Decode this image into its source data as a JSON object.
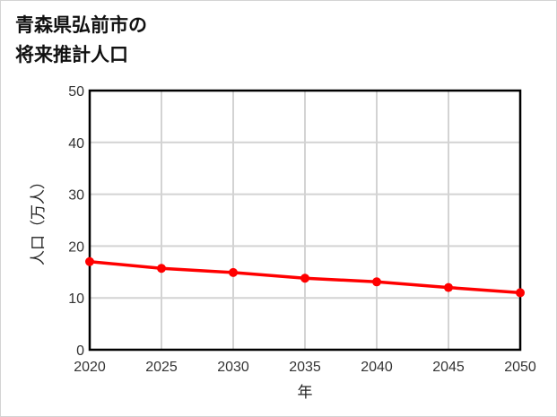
{
  "title": {
    "line1": "青森県弘前市の",
    "line2": "将来推計人口"
  },
  "colors": {
    "series": "#ff0000",
    "grid": "#d3d3d3",
    "axis": "#000000",
    "border": "#d4d4d4"
  },
  "chart_data": {
    "type": "line",
    "title": "青森県弘前市の将来推計人口",
    "xlabel": "年",
    "ylabel": "人口（万人）",
    "x": [
      2020,
      2025,
      2030,
      2035,
      2040,
      2045,
      2050
    ],
    "series": [
      {
        "name": "人口（万人）",
        "values": [
          17.0,
          15.7,
          14.9,
          13.8,
          13.1,
          12.0,
          11.0
        ]
      }
    ],
    "xlim": [
      2020,
      2050
    ],
    "ylim": [
      0,
      50
    ],
    "yticks": [
      0,
      10,
      20,
      30,
      40,
      50
    ],
    "xticks": [
      2020,
      2025,
      2030,
      2035,
      2040,
      2045,
      2050
    ],
    "grid": true,
    "legend": "none"
  }
}
